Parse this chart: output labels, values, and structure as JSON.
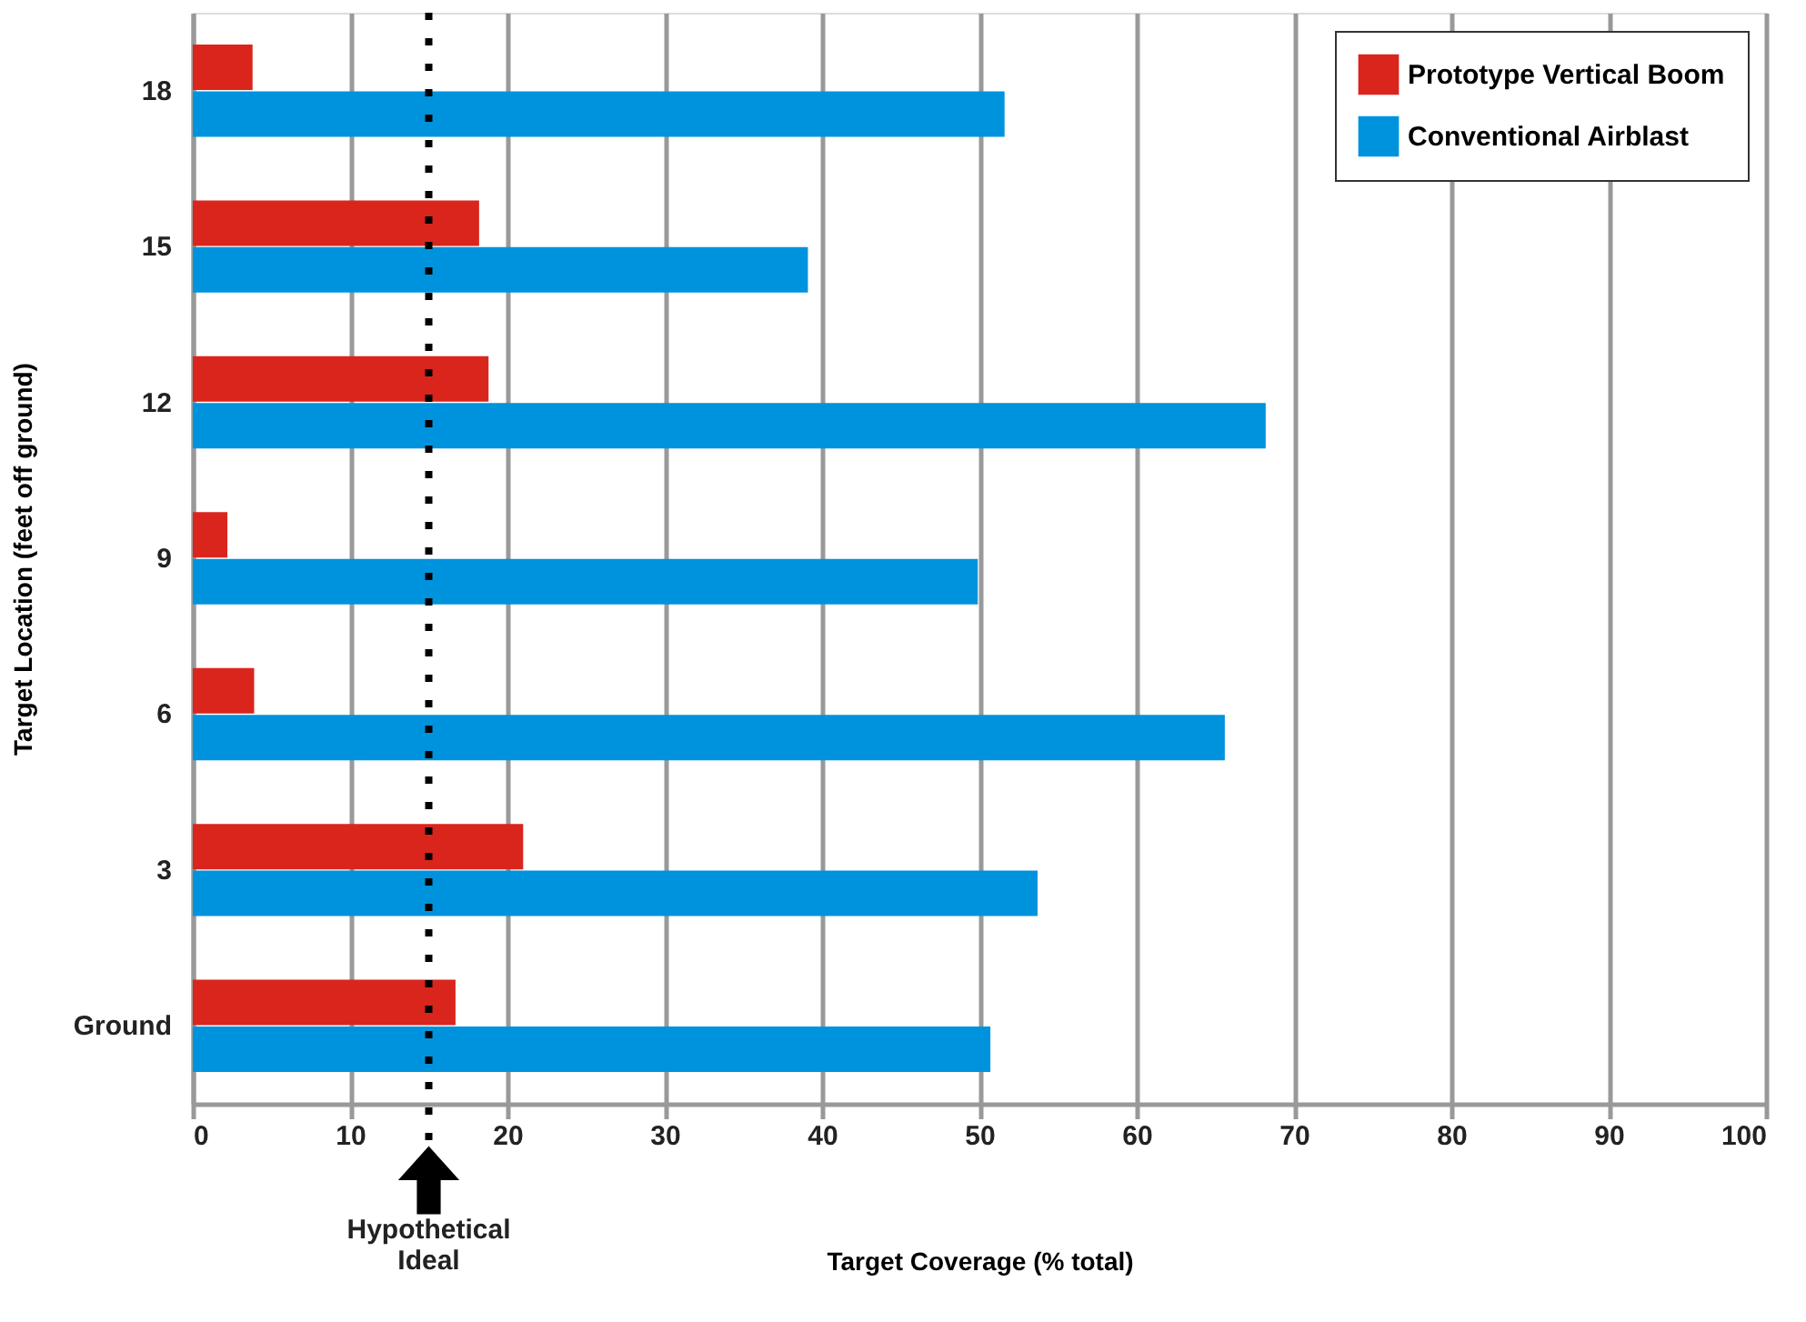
{
  "chart_data": {
    "type": "bar",
    "orientation": "horizontal",
    "categories": [
      "18",
      "15",
      "12",
      "9",
      "6",
      "3",
      "Ground"
    ],
    "series": [
      {
        "name": "Prototype Vertical Boom",
        "color": "#da251d",
        "values": [
          3.8,
          18.2,
          18.8,
          2.2,
          3.9,
          21.0,
          16.7
        ]
      },
      {
        "name": "Conventional Airblast",
        "color": "#0093dd",
        "values": [
          51.6,
          39.1,
          68.2,
          49.9,
          65.6,
          53.7,
          50.7
        ]
      }
    ],
    "xlabel": "Target Coverage (% total)",
    "ylabel": "Target Location (feet off ground)",
    "xlim": [
      0,
      100
    ],
    "xticks": [
      0,
      10,
      20,
      30,
      40,
      50,
      60,
      70,
      80,
      90,
      100
    ],
    "ref_lines": [
      {
        "axis": "x",
        "value": 15,
        "label": "Hypothetical Ideal",
        "color": "#000000",
        "line_style": "dotted"
      }
    ],
    "grid": "x",
    "legend": "top right"
  }
}
